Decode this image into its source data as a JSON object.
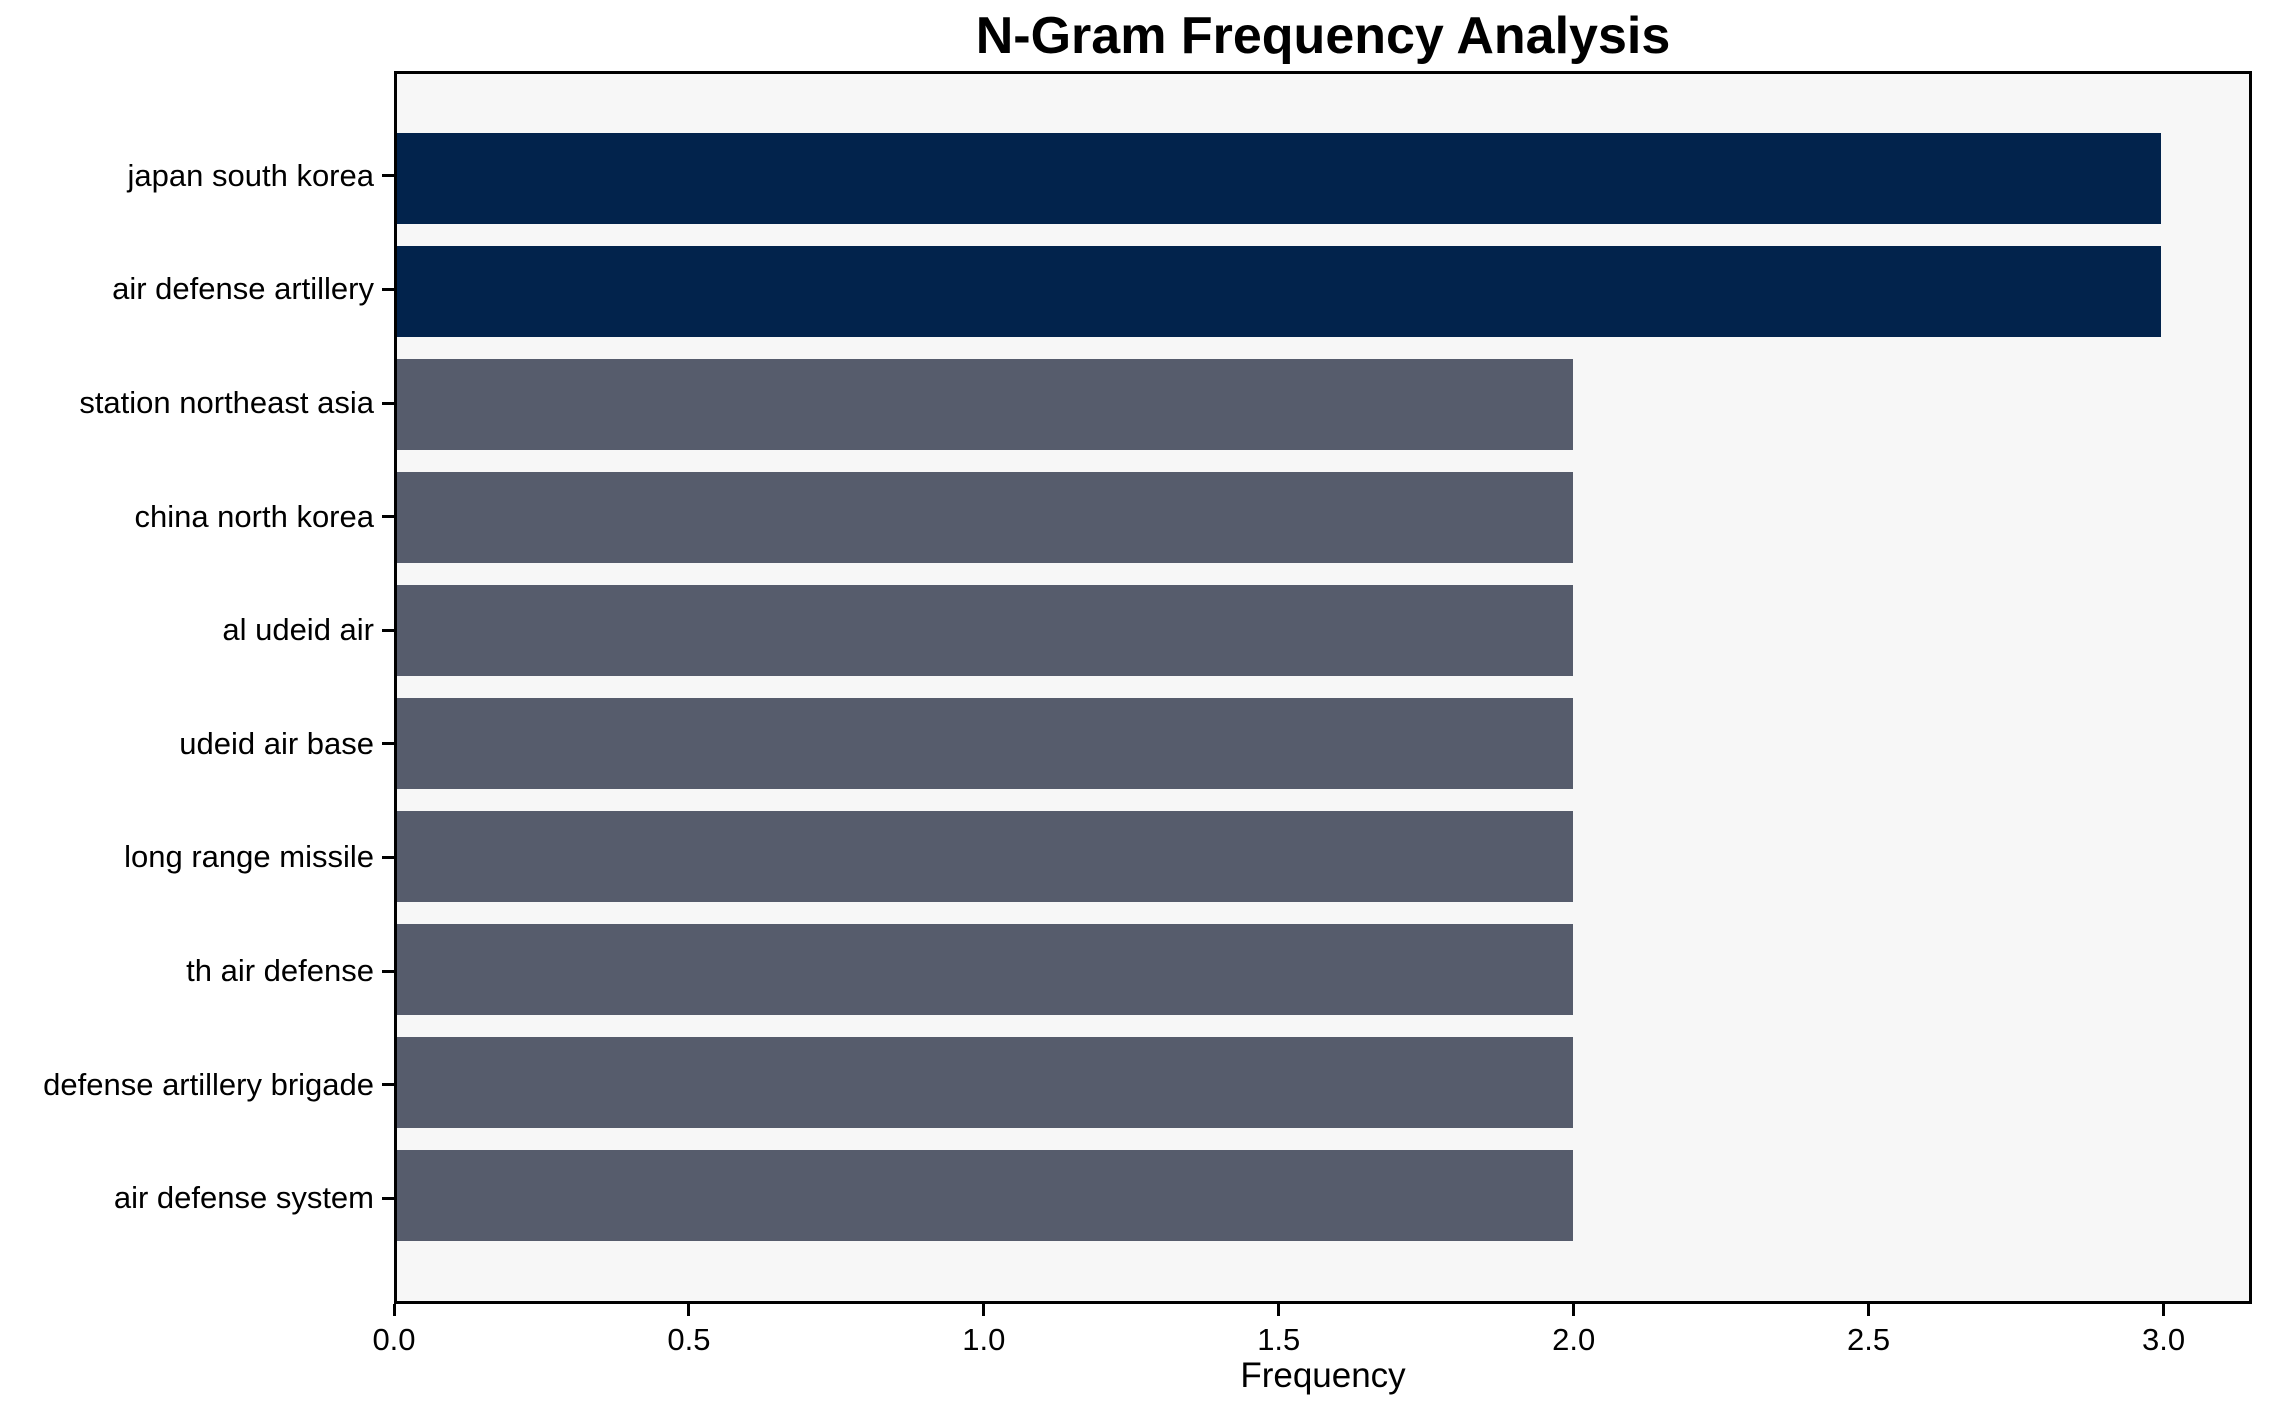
{
  "chart_data": {
    "type": "bar",
    "orientation": "horizontal",
    "title": "N-Gram Frequency Analysis",
    "xlabel": "Frequency",
    "categories": [
      "japan south korea",
      "air defense artillery",
      "station northeast asia",
      "china north korea",
      "al udeid air",
      "udeid air base",
      "long range missile",
      "th air defense",
      "defense artillery brigade",
      "air defense system"
    ],
    "values": [
      3,
      3,
      2,
      2,
      2,
      2,
      2,
      2,
      2,
      2
    ],
    "bar_colors": [
      "#02234c",
      "#02234c",
      "#565c6c",
      "#565c6c",
      "#565c6c",
      "#565c6c",
      "#565c6c",
      "#565c6c",
      "#565c6c",
      "#565c6c"
    ],
    "xticks": [
      "0.0",
      "0.5",
      "1.0",
      "1.5",
      "2.0",
      "2.5",
      "3.0"
    ],
    "xtick_values": [
      0,
      0.5,
      1,
      1.5,
      2,
      2.5,
      3
    ],
    "xlim": [
      0,
      3.15
    ],
    "grid": false,
    "colors": {
      "highlight_bar": "#02234c",
      "default_bar": "#565c6c",
      "plot_background": "#f7f7f7",
      "axis": "#000000",
      "text": "#000000"
    }
  }
}
